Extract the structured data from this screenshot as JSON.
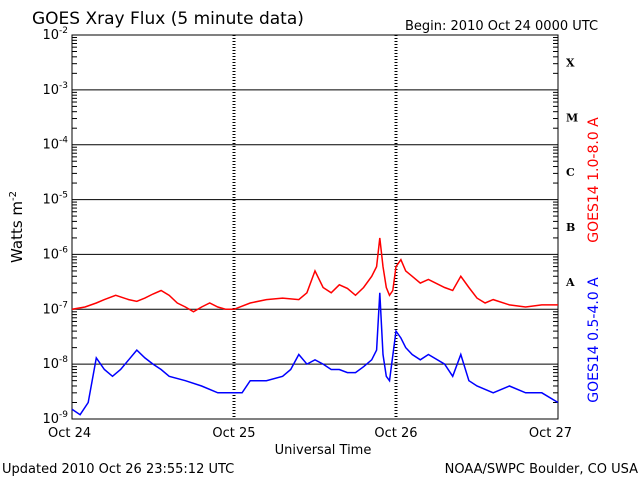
{
  "chart_data": {
    "type": "line",
    "title": "GOES Xray Flux (5 minute data)",
    "begin": "Begin:  2010 Oct 24 0000 UTC",
    "xlabel": "Universal Time",
    "ylabel_base": "Watts m",
    "ylabel_exp": "-2",
    "y_scale": "log",
    "ylim": [
      1e-09,
      0.01
    ],
    "y_ticks": [
      {
        "base": "10",
        "exp": "-9"
      },
      {
        "base": "10",
        "exp": "-8"
      },
      {
        "base": "10",
        "exp": "-7"
      },
      {
        "base": "10",
        "exp": "-6"
      },
      {
        "base": "10",
        "exp": "-5"
      },
      {
        "base": "10",
        "exp": "-4"
      },
      {
        "base": "10",
        "exp": "-3"
      },
      {
        "base": "10",
        "exp": "-2"
      }
    ],
    "x_range_days": [
      0,
      3
    ],
    "x_ticks": [
      "Oct 24",
      "Oct 25",
      "Oct 26",
      "Oct 27"
    ],
    "flare_classes": [
      "A",
      "B",
      "C",
      "M",
      "X"
    ],
    "grid": true,
    "series": [
      {
        "name": "GOES14 1.0-8.0 A",
        "color": "#ff0000",
        "x": [
          0,
          0.08,
          0.15,
          0.2,
          0.27,
          0.35,
          0.4,
          0.45,
          0.5,
          0.55,
          0.6,
          0.65,
          0.7,
          0.75,
          0.8,
          0.85,
          0.9,
          0.95,
          1.0,
          1.1,
          1.2,
          1.3,
          1.4,
          1.45,
          1.5,
          1.55,
          1.6,
          1.65,
          1.7,
          1.75,
          1.8,
          1.85,
          1.88,
          1.9,
          1.92,
          1.94,
          1.96,
          1.98,
          2.0,
          2.03,
          2.06,
          2.1,
          2.15,
          2.2,
          2.3,
          2.35,
          2.4,
          2.45,
          2.5,
          2.55,
          2.6,
          2.7,
          2.8,
          2.9,
          3.0
        ],
        "values": [
          1e-07,
          1.1e-07,
          1.3e-07,
          1.5e-07,
          1.8e-07,
          1.5e-07,
          1.4e-07,
          1.6e-07,
          1.9e-07,
          2.2e-07,
          1.8e-07,
          1.3e-07,
          1.1e-07,
          9e-08,
          1.1e-07,
          1.3e-07,
          1.1e-07,
          1e-07,
          1e-07,
          1.3e-07,
          1.5e-07,
          1.6e-07,
          1.5e-07,
          2e-07,
          5e-07,
          2.5e-07,
          2e-07,
          2.8e-07,
          2.4e-07,
          1.8e-07,
          2.5e-07,
          4e-07,
          6e-07,
          2e-06,
          6e-07,
          2.5e-07,
          1.8e-07,
          2.2e-07,
          6e-07,
          8e-07,
          5e-07,
          4e-07,
          3e-07,
          3.5e-07,
          2.5e-07,
          2.2e-07,
          4e-07,
          2.5e-07,
          1.6e-07,
          1.3e-07,
          1.5e-07,
          1.2e-07,
          1.1e-07,
          1.2e-07,
          1.2e-07
        ]
      },
      {
        "name": "GOES14 0.5-4.0 A",
        "color": "#0000ff",
        "x": [
          0,
          0.05,
          0.1,
          0.15,
          0.2,
          0.25,
          0.3,
          0.35,
          0.4,
          0.45,
          0.5,
          0.55,
          0.6,
          0.7,
          0.8,
          0.9,
          1.0,
          1.05,
          1.1,
          1.2,
          1.3,
          1.35,
          1.4,
          1.45,
          1.5,
          1.55,
          1.6,
          1.65,
          1.7,
          1.75,
          1.8,
          1.85,
          1.88,
          1.9,
          1.92,
          1.94,
          1.96,
          2.0,
          2.03,
          2.06,
          2.1,
          2.15,
          2.2,
          2.3,
          2.35,
          2.4,
          2.45,
          2.5,
          2.6,
          2.7,
          2.8,
          2.9,
          3.0
        ],
        "values": [
          1.5e-09,
          1.2e-09,
          2e-09,
          1.3e-08,
          8e-09,
          6e-09,
          8e-09,
          1.2e-08,
          1.8e-08,
          1.3e-08,
          1e-08,
          8e-09,
          6e-09,
          5e-09,
          4e-09,
          3e-09,
          3e-09,
          3e-09,
          5e-09,
          5e-09,
          6e-09,
          8e-09,
          1.5e-08,
          1e-08,
          1.2e-08,
          1e-08,
          8e-09,
          8e-09,
          7e-09,
          7e-09,
          9e-09,
          1.2e-08,
          1.8e-08,
          2e-07,
          1.5e-08,
          6e-09,
          5e-09,
          4e-08,
          3e-08,
          2e-08,
          1.5e-08,
          1.2e-08,
          1.5e-08,
          1e-08,
          6e-09,
          1.5e-08,
          5e-09,
          4e-09,
          3e-09,
          4e-09,
          3e-09,
          3e-09,
          2e-09
        ]
      }
    ]
  },
  "footer": {
    "updated": "Updated 2010 Oct 26 23:55:12 UTC",
    "credit": "NOAA/SWPC Boulder, CO USA"
  }
}
